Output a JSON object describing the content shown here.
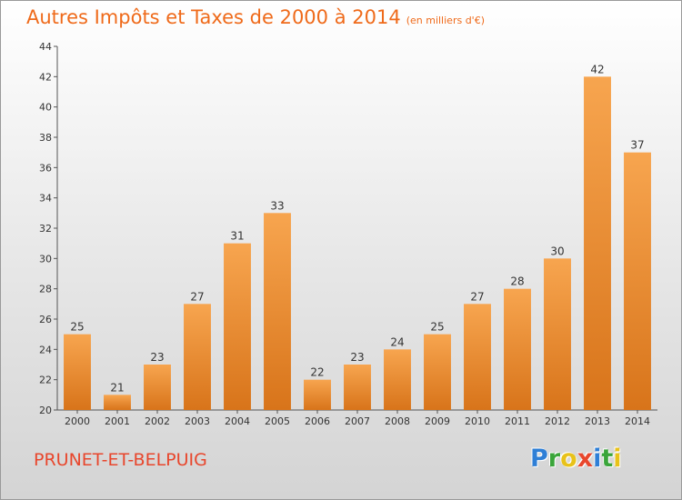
{
  "title": "Autres Impôts et Taxes de 2000 à 2014",
  "subtitle": "(en milliers d'€)",
  "commune": "PRUNET-ET-BELPUIG",
  "logo": {
    "letters": [
      "P",
      "r",
      "o",
      "x",
      "i",
      "t",
      "i"
    ],
    "colors": [
      "#2f7fd6",
      "#3aa53a",
      "#e8c21a",
      "#e8462c",
      "#2f7fd6",
      "#3aa53a",
      "#e8c21a"
    ]
  },
  "colors": {
    "title": "#ef6a1a",
    "bar_top": "#f7a54f",
    "bar_bottom": "#d8741a",
    "commune": "#e8462c"
  },
  "chart_data": {
    "type": "bar",
    "categories": [
      "2000",
      "2001",
      "2002",
      "2003",
      "2004",
      "2005",
      "2006",
      "2007",
      "2008",
      "2009",
      "2010",
      "2011",
      "2012",
      "2013",
      "2014"
    ],
    "values": [
      25,
      21,
      23,
      27,
      31,
      33,
      22,
      23,
      24,
      25,
      27,
      28,
      30,
      42,
      37
    ],
    "ylim": [
      20,
      44
    ],
    "yticks": [
      20,
      22,
      24,
      26,
      28,
      30,
      32,
      34,
      36,
      38,
      40,
      42,
      44
    ],
    "grid": false,
    "data_labels": true
  }
}
